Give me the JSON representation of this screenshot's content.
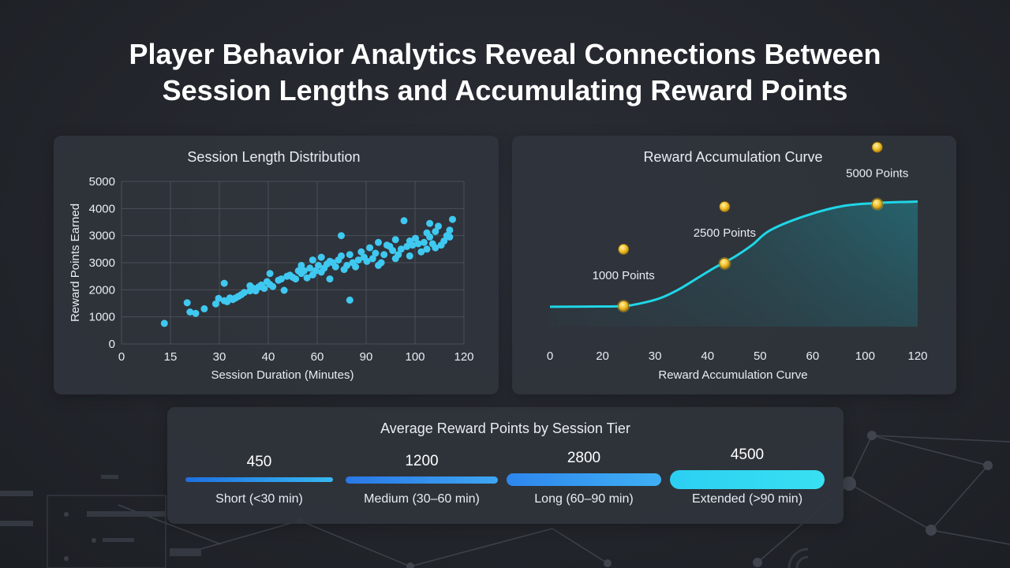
{
  "title_lines": [
    "Player Behavior Analytics Reveal Connections Between",
    "Session Lengths and Accumulating Reward Points"
  ],
  "colors": {
    "accent": "#38c9f0",
    "point": "#3fc8f0",
    "curve": "#1fd6e6",
    "coin": "#f2c230"
  },
  "chart_data": [
    {
      "type": "scatter",
      "title": "Session Length Distribution",
      "xlabel": "Session Duration (Minutes)",
      "ylabel": "Reward Points Earned",
      "x_ticks": [
        "0",
        "15",
        "30",
        "40",
        "60",
        "90",
        "100",
        "120"
      ],
      "y_ticks": [
        "0",
        "1000",
        "2000",
        "3000",
        "3000",
        "4000",
        "5000"
      ],
      "grid": true,
      "points": [
        [
          15,
          760
        ],
        [
          23,
          1520
        ],
        [
          24,
          1180
        ],
        [
          26,
          1130
        ],
        [
          29,
          1300
        ],
        [
          33,
          1480
        ],
        [
          34,
          1680
        ],
        [
          36,
          1600
        ],
        [
          36,
          2240
        ],
        [
          37,
          1560
        ],
        [
          38,
          1700
        ],
        [
          39,
          1640
        ],
        [
          40,
          1700
        ],
        [
          41,
          1760
        ],
        [
          42,
          1820
        ],
        [
          43,
          1900
        ],
        [
          45,
          2150
        ],
        [
          45,
          1960
        ],
        [
          46,
          2060
        ],
        [
          47,
          1960
        ],
        [
          48,
          2100
        ],
        [
          49,
          2180
        ],
        [
          50,
          2050
        ],
        [
          51,
          2300
        ],
        [
          52,
          2600
        ],
        [
          52,
          2200
        ],
        [
          53,
          2120
        ],
        [
          55,
          2350
        ],
        [
          56,
          2400
        ],
        [
          57,
          1980
        ],
        [
          58,
          2500
        ],
        [
          59,
          2540
        ],
        [
          60,
          2460
        ],
        [
          61,
          2400
        ],
        [
          62,
          2700
        ],
        [
          63,
          2600
        ],
        [
          63,
          2900
        ],
        [
          64,
          2700
        ],
        [
          65,
          2440
        ],
        [
          66,
          2800
        ],
        [
          67,
          3100
        ],
        [
          67,
          2550
        ],
        [
          68,
          2700
        ],
        [
          69,
          2900
        ],
        [
          70,
          3200
        ],
        [
          70,
          2650
        ],
        [
          71,
          2800
        ],
        [
          72,
          2950
        ],
        [
          73,
          2400
        ],
        [
          73,
          3050
        ],
        [
          74,
          3000
        ],
        [
          75,
          2850
        ],
        [
          76,
          3100
        ],
        [
          77,
          3250
        ],
        [
          77,
          4000
        ],
        [
          78,
          2750
        ],
        [
          79,
          2900
        ],
        [
          80,
          3300
        ],
        [
          80,
          1620
        ],
        [
          81,
          3000
        ],
        [
          82,
          2850
        ],
        [
          83,
          3100
        ],
        [
          84,
          3400
        ],
        [
          85,
          3200
        ],
        [
          86,
          3050
        ],
        [
          87,
          3550
        ],
        [
          88,
          3150
        ],
        [
          89,
          3350
        ],
        [
          90,
          2900
        ],
        [
          90,
          3750
        ],
        [
          91,
          3000
        ],
        [
          92,
          3300
        ],
        [
          93,
          3650
        ],
        [
          94,
          3600
        ],
        [
          95,
          3450
        ],
        [
          96,
          3150
        ],
        [
          96,
          3850
        ],
        [
          97,
          3300
        ],
        [
          98,
          3500
        ],
        [
          99,
          4550
        ],
        [
          100,
          3600
        ],
        [
          101,
          3250
        ],
        [
          101,
          3800
        ],
        [
          102,
          3650
        ],
        [
          103,
          3900
        ],
        [
          104,
          3700
        ],
        [
          105,
          3400
        ],
        [
          106,
          3750
        ],
        [
          107,
          4100
        ],
        [
          107,
          3500
        ],
        [
          108,
          4450
        ],
        [
          108,
          3950
        ],
        [
          109,
          3700
        ],
        [
          110,
          4150
        ],
        [
          110,
          3550
        ],
        [
          111,
          4350
        ],
        [
          112,
          3650
        ],
        [
          113,
          3800
        ],
        [
          114,
          4000
        ],
        [
          115,
          4200
        ],
        [
          115,
          3950
        ],
        [
          116,
          4600
        ]
      ]
    },
    {
      "type": "area",
      "title": "Reward Accumulation Curve",
      "xlabel": "Reward Accumulation Curve",
      "x_ticks": [
        "0",
        "20",
        "30",
        "40",
        "50",
        "60",
        "100",
        "120"
      ],
      "grid": false,
      "curve": [
        [
          0,
          800
        ],
        [
          10,
          810
        ],
        [
          20,
          830
        ],
        [
          25,
          950
        ],
        [
          30,
          1150
        ],
        [
          35,
          1500
        ],
        [
          40,
          1950
        ],
        [
          45,
          2400
        ],
        [
          50,
          2800
        ],
        [
          55,
          3300
        ],
        [
          60,
          3900
        ],
        [
          70,
          4500
        ],
        [
          80,
          4880
        ],
        [
          90,
          5000
        ],
        [
          100,
          5050
        ]
      ],
      "milestones": [
        {
          "x": 20,
          "y": 830,
          "label": "1000 Points"
        },
        {
          "x": 47.5,
          "y": 2550,
          "label": "2500 Points"
        },
        {
          "x": 89,
          "y": 4950,
          "label": "5000 Points"
        }
      ]
    },
    {
      "type": "bar",
      "title": "Average Reward Points by Session Tier",
      "categories": [
        "Short (<30 min)",
        "Medium (30–60 min)",
        "Long (60–90 min)",
        "Extended (>90 min)"
      ],
      "values": [
        450,
        1200,
        2800,
        4500
      ],
      "value_labels": [
        "450",
        "1200",
        "2800",
        "4500"
      ]
    }
  ]
}
